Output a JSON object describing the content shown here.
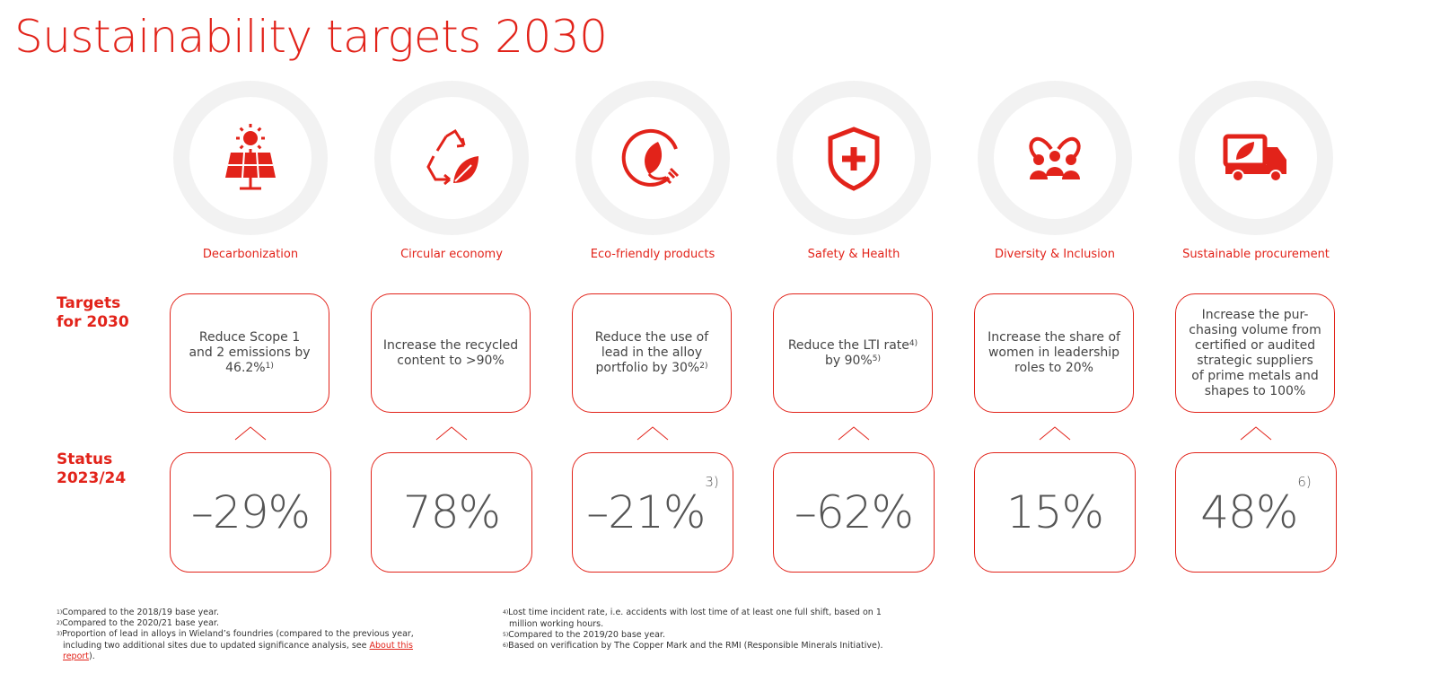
{
  "header": {
    "title": "Sustainability targets 2030"
  },
  "row_labels": {
    "targets": [
      "Targets",
      "for 2030"
    ],
    "status": [
      "Status",
      "2023/24"
    ]
  },
  "columns": [
    {
      "label": "Decarbonization",
      "target": {
        "lines": [
          "Reduce Scope 1",
          "and 2 emissions by",
          "46.2%"
        ],
        "note": "1)"
      },
      "status": {
        "value": "–29%",
        "note": null
      }
    },
    {
      "label": "Circular economy",
      "target": {
        "lines": [
          "Increase the recycled",
          "content to >90%"
        ],
        "note": null
      },
      "status": {
        "value": "78%",
        "note": null
      }
    },
    {
      "label": "Eco-friendly products",
      "target": {
        "lines": [
          "Reduce the use of",
          "lead in the alloy",
          "portfolio by 30%"
        ],
        "note": "2)"
      },
      "status": {
        "value": "–21%",
        "note": "3)"
      }
    },
    {
      "label": "Safety & Health",
      "target": {
        "lines": [
          "Reduce the LTI rate",
          "by 90%"
        ],
        "line_notes": [
          "4)",
          "5)"
        ]
      },
      "status": {
        "value": "–62%",
        "note": null
      }
    },
    {
      "label": "Diversity & Inclusion",
      "target": {
        "lines": [
          "Increase the share of",
          "women in leadership",
          "roles to 20%"
        ],
        "note": null
      },
      "status": {
        "value": "15%",
        "note": null
      }
    },
    {
      "label": "Sustainable procurement",
      "target": {
        "lines": [
          "Increase the pur-",
          "chasing volume from",
          "certified or audited",
          "strategic suppliers",
          "of prime metals and",
          "shapes to 100%"
        ],
        "note": null
      },
      "status": {
        "value": "48%",
        "note": "6)"
      }
    }
  ],
  "footnotes": [
    {
      "marker": "1)",
      "text": "Compared to the 2018/19 base year."
    },
    {
      "marker": "2)",
      "text": "Compared to the 2020/21 base year."
    },
    {
      "marker": "3)",
      "text": "Proportion of lead in alloys in Wieland’s foundries (compared to the previous year, including two additional sites due to updated significance analysis, see ",
      "link": "About this report",
      "after": ")."
    },
    {
      "marker": "4)",
      "text": "Lost time incident rate, i.e. accidents with lost time of at least one full shift, based on 1 million working hours."
    },
    {
      "marker": "5)",
      "text": "Compared to the 2019/20 base year."
    },
    {
      "marker": "6)",
      "text": "Based on verification by The Copper Mark and the RMI (Responsible Minerals Initiative)."
    }
  ]
}
